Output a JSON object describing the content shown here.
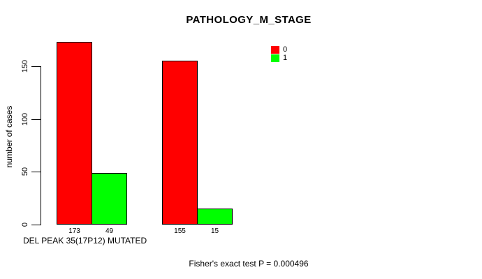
{
  "chart_data": {
    "type": "bar",
    "title": "PATHOLOGY_M_STAGE",
    "xlabel": "DEL PEAK 35(17P12) MUTATED",
    "ylabel": "number of cases",
    "annotation": "Fisher's exact test P = 0.000496",
    "legend_position": "top-right",
    "grid": false,
    "background": "#ffffff",
    "axis_color": "#000000",
    "ylim": [
      0,
      175
    ],
    "yticks": [
      0,
      50,
      100,
      150
    ],
    "series": [
      {
        "name": "0",
        "color": "#ff0000",
        "values": [
          173,
          155
        ]
      },
      {
        "name": "1",
        "color": "#00ff00",
        "values": [
          49,
          15
        ]
      }
    ],
    "bar_value_labels": [
      "173",
      "49",
      "155",
      "15"
    ]
  }
}
